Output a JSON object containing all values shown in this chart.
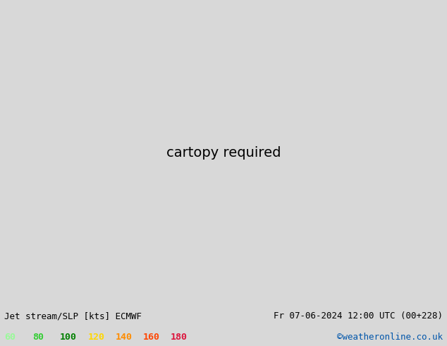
{
  "title_left": "Jet stream/SLP [kts] ECMWF",
  "title_right": "Fr 07-06-2024 12:00 UTC (00+228)",
  "credit": "©weatheronline.co.uk",
  "legend_values": [
    "60",
    "80",
    "100",
    "120",
    "140",
    "160",
    "180"
  ],
  "legend_colors": [
    "#98fb98",
    "#32cd32",
    "#008000",
    "#ffd700",
    "#ff8c00",
    "#ff4500",
    "#dc143c"
  ],
  "bg_color": "#c8c8c8",
  "land_color": "#b4d98a",
  "ocean_color": "#c8c8c8",
  "credit_color": "#0055aa",
  "bottom_bg": "#d8d8d8",
  "lon_min": -120,
  "lon_max": -50,
  "lat_min": -15,
  "lat_max": 37
}
